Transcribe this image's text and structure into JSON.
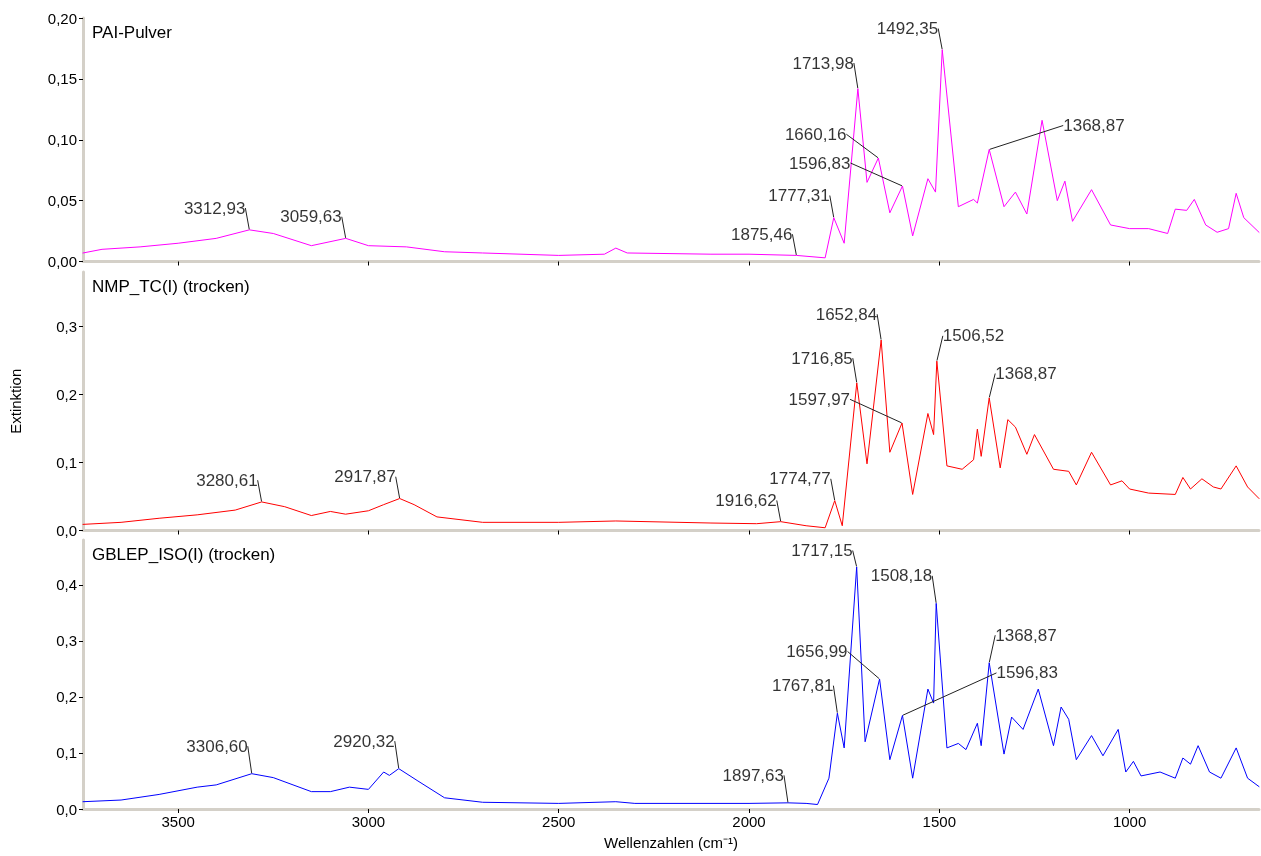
{
  "chart_data": [
    {
      "type": "line",
      "title": "PAI-Pulver",
      "xlim": [
        3750,
        660
      ],
      "xticks": [
        3500,
        3000,
        2500,
        2000,
        1500,
        1000
      ],
      "ylim": [
        0,
        0.2
      ],
      "yticks": [
        {
          "value": 0,
          "label": "0,00"
        },
        {
          "value": 0.05,
          "label": "0,05"
        },
        {
          "value": 0.1,
          "label": "0,10"
        },
        {
          "value": 0.15,
          "label": "0,15"
        },
        {
          "value": 0.2,
          "label": "0,20"
        }
      ],
      "tick_labels": "y",
      "series": [
        {
          "color": "#ff00ff",
          "x": [
            3750,
            3700,
            3600,
            3500,
            3400,
            3312.93,
            3250,
            3150,
            3059.63,
            3000,
            2900,
            2800,
            2700,
            2500,
            2380,
            2350,
            2320,
            2100,
            2000,
            1875.46,
            1800,
            1777.31,
            1750,
            1713.98,
            1690,
            1660.16,
            1630,
            1596.83,
            1570,
            1530,
            1510,
            1492.35,
            1450,
            1410,
            1400,
            1368.87,
            1330,
            1300,
            1270,
            1230,
            1190,
            1170,
            1150,
            1100,
            1050,
            1000,
            950,
            900,
            880,
            850,
            830,
            800,
            770,
            740,
            720,
            700,
            660
          ],
          "values": [
            0.007,
            0.01,
            0.012,
            0.015,
            0.019,
            0.026,
            0.023,
            0.013,
            0.019,
            0.013,
            0.012,
            0.008,
            0.007,
            0.005,
            0.006,
            0.011,
            0.007,
            0.006,
            0.006,
            0.005,
            0.003,
            0.036,
            0.015,
            0.142,
            0.065,
            0.085,
            0.04,
            0.062,
            0.021,
            0.068,
            0.057,
            0.174,
            0.045,
            0.051,
            0.048,
            0.092,
            0.045,
            0.057,
            0.039,
            0.116,
            0.05,
            0.066,
            0.033,
            0.059,
            0.03,
            0.027,
            0.027,
            0.023,
            0.043,
            0.042,
            0.051,
            0.03,
            0.024,
            0.027,
            0.056,
            0.036,
            0.024
          ]
        }
      ],
      "annotations": [
        {
          "text": "3312,93",
          "x": 3312.93,
          "y": 0.026
        },
        {
          "text": "3059,63",
          "x": 3059.63,
          "y": 0.019
        },
        {
          "text": "1875,46",
          "x": 1875.46,
          "y": 0.005
        },
        {
          "text": "1777,31",
          "x": 1777.31,
          "y": 0.036
        },
        {
          "text": "1713,98",
          "x": 1713.98,
          "y": 0.142
        },
        {
          "text": "1660,16",
          "x": 1660.16,
          "y": 0.085
        },
        {
          "text": "1596,83",
          "x": 1596.83,
          "y": 0.062
        },
        {
          "text": "1492,35",
          "x": 1492.35,
          "y": 0.174
        },
        {
          "text": "1368,87",
          "x": 1368.87,
          "y": 0.092
        }
      ]
    },
    {
      "type": "line",
      "title": "NMP_TC(I) (trocken)",
      "ylabel": "Extinktion",
      "xlim": [
        3750,
        660
      ],
      "xticks": [
        3500,
        3000,
        2500,
        2000,
        1500,
        1000
      ],
      "ylim": [
        0,
        0.38
      ],
      "yticks": [
        {
          "value": 0,
          "label": "0,0"
        },
        {
          "value": 0.1,
          "label": "0,1"
        },
        {
          "value": 0.2,
          "label": "0,2"
        },
        {
          "value": 0.3,
          "label": "0,3"
        }
      ],
      "tick_labels": "y",
      "series": [
        {
          "color": "#ff0000",
          "x": [
            3750,
            3650,
            3550,
            3450,
            3350,
            3280.61,
            3220,
            3150,
            3100,
            3060,
            3000,
            2960,
            2917.87,
            2880,
            2820,
            2700,
            2500,
            2350,
            2100,
            1980,
            1916.62,
            1850,
            1800,
            1774.77,
            1755,
            1716.85,
            1690,
            1652.84,
            1630,
            1597.97,
            1570,
            1530,
            1515,
            1506.52,
            1480,
            1440,
            1410,
            1400,
            1390,
            1368.87,
            1340,
            1320,
            1300,
            1270,
            1250,
            1200,
            1160,
            1140,
            1100,
            1050,
            1020,
            1000,
            950,
            880,
            860,
            840,
            810,
            780,
            760,
            720,
            690,
            660
          ],
          "values": [
            0.009,
            0.012,
            0.018,
            0.023,
            0.03,
            0.042,
            0.035,
            0.022,
            0.028,
            0.024,
            0.029,
            0.038,
            0.047,
            0.038,
            0.02,
            0.012,
            0.012,
            0.014,
            0.011,
            0.01,
            0.013,
            0.007,
            0.004,
            0.044,
            0.007,
            0.217,
            0.098,
            0.28,
            0.115,
            0.158,
            0.053,
            0.172,
            0.141,
            0.249,
            0.095,
            0.09,
            0.104,
            0.149,
            0.109,
            0.195,
            0.092,
            0.163,
            0.152,
            0.112,
            0.141,
            0.09,
            0.087,
            0.067,
            0.115,
            0.067,
            0.073,
            0.061,
            0.055,
            0.053,
            0.078,
            0.061,
            0.076,
            0.064,
            0.061,
            0.095,
            0.064,
            0.047
          ]
        }
      ],
      "annotations": [
        {
          "text": "3280,61",
          "x": 3280.61,
          "y": 0.042
        },
        {
          "text": "2917,87",
          "x": 2917.87,
          "y": 0.047
        },
        {
          "text": "1916,62",
          "x": 1916.62,
          "y": 0.013
        },
        {
          "text": "1774,77",
          "x": 1774.77,
          "y": 0.044
        },
        {
          "text": "1716,85",
          "x": 1716.85,
          "y": 0.217
        },
        {
          "text": "1652,84",
          "x": 1652.84,
          "y": 0.28
        },
        {
          "text": "1597,97",
          "x": 1597.97,
          "y": 0.158
        },
        {
          "text": "1506,52",
          "x": 1506.52,
          "y": 0.249
        },
        {
          "text": "1368,87",
          "x": 1368.87,
          "y": 0.195
        }
      ]
    },
    {
      "type": "line",
      "title": "GBLEP_ISO(I) (trocken)",
      "xlabel": "Wellenzahlen (cm⁻¹)",
      "xlim": [
        3750,
        660
      ],
      "xticks": [
        3500,
        3000,
        2500,
        2000,
        1500,
        1000
      ],
      "ylim": [
        0,
        0.48
      ],
      "yticks": [
        {
          "value": 0,
          "label": "0,0"
        },
        {
          "value": 0.1,
          "label": "0,1"
        },
        {
          "value": 0.2,
          "label": "0,2"
        },
        {
          "value": 0.3,
          "label": "0,3"
        },
        {
          "value": 0.4,
          "label": "0,4"
        }
      ],
      "series": [
        {
          "color": "#0000ff",
          "x": [
            3750,
            3650,
            3550,
            3450,
            3400,
            3306.6,
            3250,
            3150,
            3100,
            3050,
            3000,
            2960,
            2945,
            2920.32,
            2870,
            2800,
            2700,
            2500,
            2350,
            2300,
            2000,
            1897.63,
            1850,
            1820,
            1790,
            1767.81,
            1750,
            1717.15,
            1695,
            1656.99,
            1630,
            1596.83,
            1570,
            1530,
            1515,
            1508.18,
            1480,
            1450,
            1430,
            1400,
            1390,
            1368.87,
            1330,
            1310,
            1280,
            1240,
            1200,
            1180,
            1160,
            1140,
            1100,
            1070,
            1030,
            1010,
            990,
            970,
            920,
            880,
            860,
            840,
            820,
            790,
            760,
            720,
            690,
            660
          ],
          "values": [
            0.013,
            0.016,
            0.026,
            0.039,
            0.043,
            0.063,
            0.056,
            0.031,
            0.031,
            0.039,
            0.035,
            0.066,
            0.06,
            0.072,
            0.05,
            0.02,
            0.012,
            0.01,
            0.013,
            0.01,
            0.01,
            0.011,
            0.01,
            0.008,
            0.055,
            0.171,
            0.109,
            0.432,
            0.12,
            0.232,
            0.088,
            0.167,
            0.055,
            0.214,
            0.189,
            0.367,
            0.109,
            0.117,
            0.106,
            0.153,
            0.113,
            0.261,
            0.098,
            0.164,
            0.142,
            0.214,
            0.113,
            0.182,
            0.16,
            0.088,
            0.131,
            0.095,
            0.142,
            0.066,
            0.085,
            0.059,
            0.066,
            0.055,
            0.091,
            0.08,
            0.113,
            0.066,
            0.055,
            0.109,
            0.055,
            0.04
          ]
        }
      ],
      "annotations": [
        {
          "text": "3306,60",
          "x": 3306.6,
          "y": 0.063
        },
        {
          "text": "2920,32",
          "x": 2920.32,
          "y": 0.072
        },
        {
          "text": "1897,63",
          "x": 1897.63,
          "y": 0.011
        },
        {
          "text": "1767,81",
          "x": 1767.81,
          "y": 0.171
        },
        {
          "text": "1717,15",
          "x": 1717.15,
          "y": 0.432
        },
        {
          "text": "1656,99",
          "x": 1656.99,
          "y": 0.232
        },
        {
          "text": "1596,83",
          "x": 1596.83,
          "y": 0.167
        },
        {
          "text": "1508,18",
          "x": 1508.18,
          "y": 0.367
        },
        {
          "text": "1368,87",
          "x": 1368.87,
          "y": 0.261
        }
      ]
    }
  ]
}
